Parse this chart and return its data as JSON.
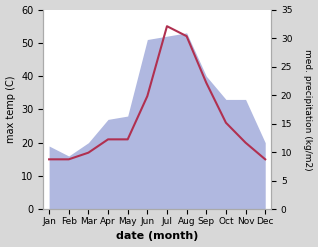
{
  "months": [
    "Jan",
    "Feb",
    "Mar",
    "Apr",
    "May",
    "Jun",
    "Jul",
    "Aug",
    "Sep",
    "Oct",
    "Nov",
    "Dec"
  ],
  "temperature": [
    15,
    15,
    17,
    21,
    21,
    34,
    55,
    52,
    38,
    26,
    20,
    15
  ],
  "precipitation_scaled": [
    19,
    16,
    20,
    27,
    28,
    51,
    52,
    53,
    40,
    33,
    33,
    20
  ],
  "temp_color": "#b03050",
  "precip_color": "#b0b8e0",
  "ylim_left": [
    0,
    60
  ],
  "ylim_right": [
    0,
    35
  ],
  "ylabel_left": "max temp (C)",
  "ylabel_right": "med. precipitation (kg/m2)",
  "xlabel": "date (month)",
  "fig_bg_color": "#d8d8d8",
  "plot_bg_color": "#ffffff"
}
